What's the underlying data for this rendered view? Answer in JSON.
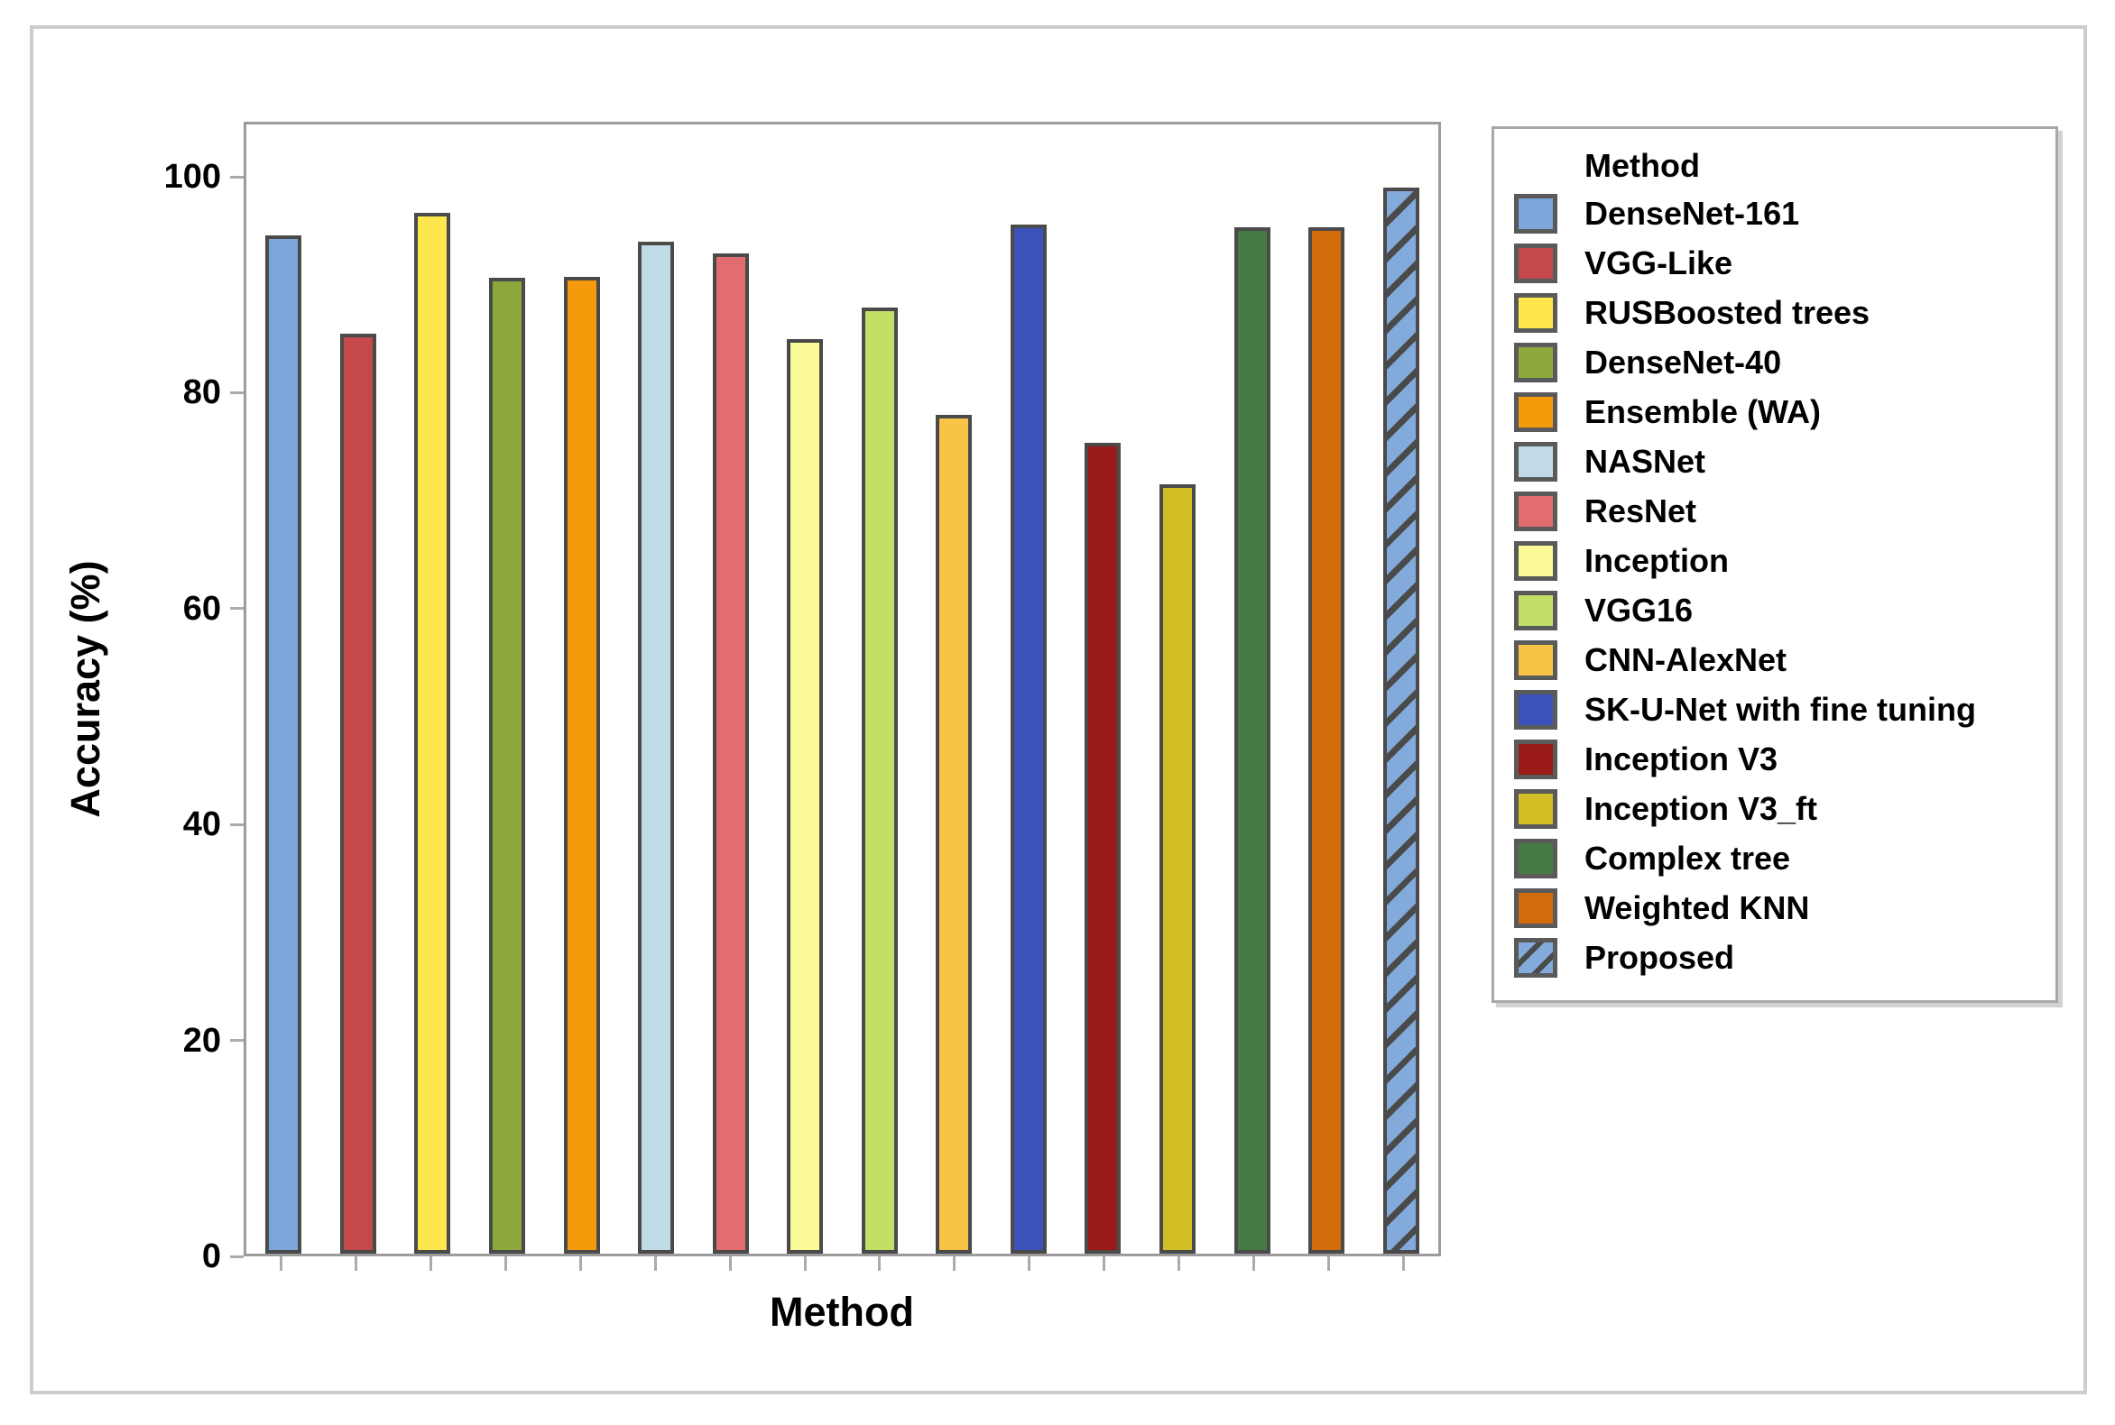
{
  "chart_data": {
    "type": "bar",
    "title": "",
    "xlabel": "Method",
    "ylabel": "Accuracy (%)",
    "ylim": [
      0,
      105.1
    ],
    "yticks": [
      0,
      20,
      40,
      60,
      80,
      100
    ],
    "grid": false,
    "legend_title": "Method",
    "legend_position": "right",
    "categories": [
      "DenseNet-161",
      "VGG-Like",
      "RUSBoosted trees",
      "DenseNet-40",
      "Ensemble (WA)",
      "NASNet",
      "ResNet",
      "Inception",
      "VGG16",
      "CNN-AlexNet",
      "SK-U-Net with fine tuning",
      "Inception V3",
      "Inception V3_ft",
      "Complex tree",
      "Weighted KNN",
      "Proposed"
    ],
    "values": [
      94.8,
      85.6,
      96.9,
      90.8,
      90.9,
      94.2,
      93.1,
      85.1,
      88.1,
      78.1,
      95.8,
      75.5,
      71.6,
      95.5,
      95.5,
      99.2
    ],
    "colors": [
      "#7CA5D9",
      "#C4494B",
      "#FDE74C",
      "#8EA93B",
      "#F59A0B",
      "#C0DBE7",
      "#E26C6E",
      "#FAFA97",
      "#C2E068",
      "#F9C445",
      "#3B52BB",
      "#9A1B17",
      "#D1BF25",
      "#477B44",
      "#D26B0A",
      "#82ABDB"
    ],
    "hatched": [
      false,
      false,
      false,
      false,
      false,
      false,
      false,
      false,
      false,
      false,
      false,
      false,
      false,
      false,
      false,
      true
    ],
    "bar_border_color": "#4A4A4A",
    "hatch_color": "#4A4A4A"
  }
}
